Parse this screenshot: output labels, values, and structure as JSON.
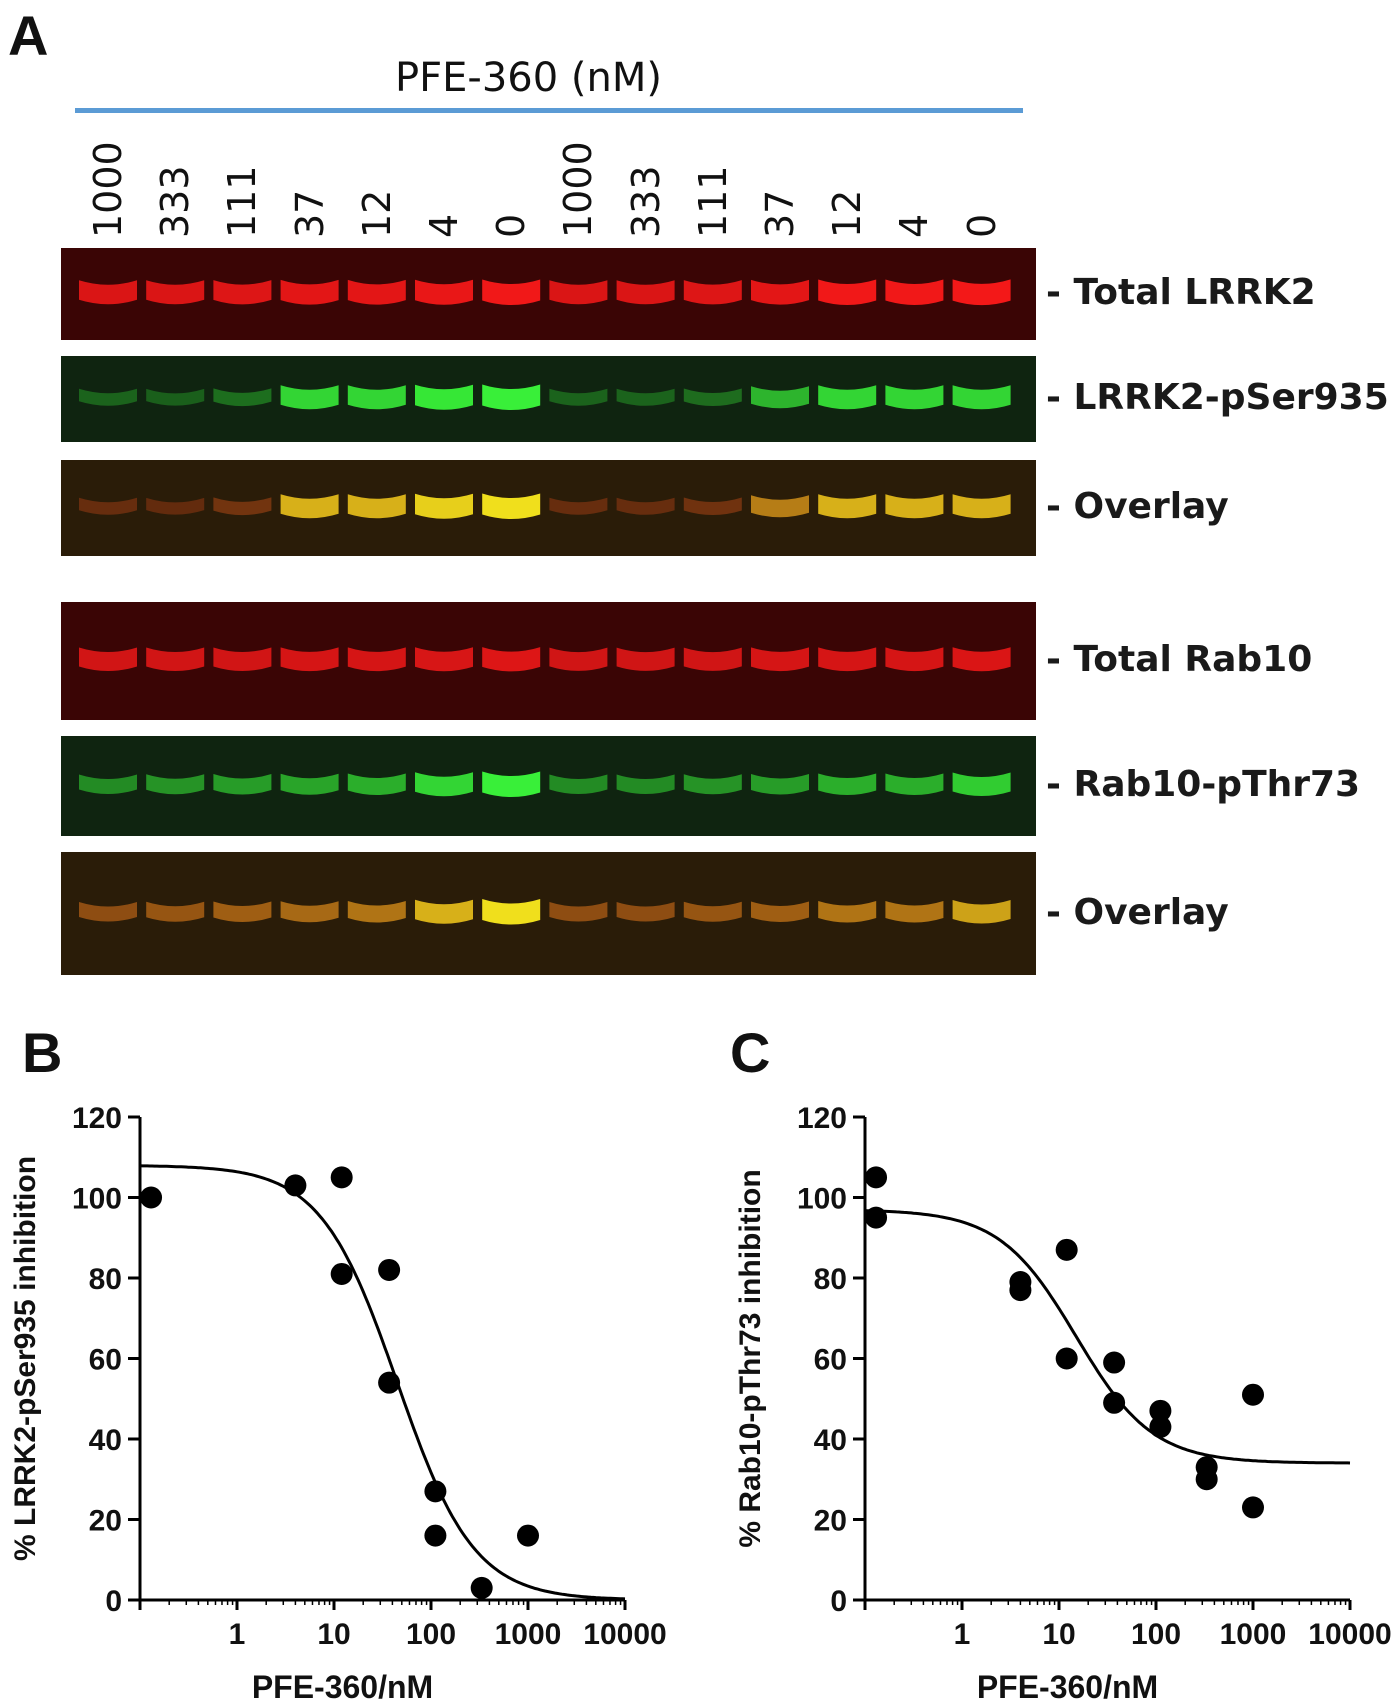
{
  "panel_a": {
    "letter": "A",
    "drug_title": "PFE-360 (nM)",
    "lanes": [
      "1000",
      "333",
      "111",
      "37",
      "12",
      "4",
      "0",
      "1000",
      "333",
      "111",
      "37",
      "12",
      "4",
      "0"
    ],
    "blots": [
      {
        "label": "- Total LRRK2",
        "channel": "red",
        "intensity": [
          0.75,
          0.75,
          0.78,
          0.82,
          0.82,
          0.85,
          0.9,
          0.75,
          0.75,
          0.78,
          0.82,
          0.9,
          0.9,
          0.92
        ]
      },
      {
        "label": "- LRRK2-pSer935",
        "channel": "green",
        "intensity": [
          0.05,
          0.03,
          0.12,
          0.75,
          0.75,
          0.85,
          0.9,
          0.05,
          0.06,
          0.1,
          0.55,
          0.75,
          0.75,
          0.75
        ]
      },
      {
        "label": "- Overlay",
        "channel": "overlay",
        "intensity": [
          0.05,
          0.03,
          0.12,
          0.75,
          0.75,
          0.85,
          0.9,
          0.05,
          0.06,
          0.1,
          0.55,
          0.75,
          0.75,
          0.75
        ]
      },
      {
        "label": "- Total Rab10",
        "channel": "red",
        "intensity": [
          0.7,
          0.7,
          0.7,
          0.72,
          0.72,
          0.74,
          0.78,
          0.68,
          0.68,
          0.68,
          0.72,
          0.72,
          0.72,
          0.75
        ]
      },
      {
        "label": "- Rab10-pThr73",
        "channel": "green",
        "intensity": [
          0.3,
          0.35,
          0.4,
          0.45,
          0.5,
          0.75,
          0.9,
          0.3,
          0.3,
          0.35,
          0.4,
          0.5,
          0.5,
          0.7
        ]
      },
      {
        "label": "- Overlay",
        "channel": "overlay",
        "intensity": [
          0.3,
          0.35,
          0.4,
          0.45,
          0.5,
          0.75,
          0.9,
          0.3,
          0.3,
          0.35,
          0.4,
          0.5,
          0.5,
          0.7
        ]
      }
    ],
    "colors": {
      "red": "#ff1a1a",
      "green": "#3cff3c",
      "overlay": "#ffe51a"
    }
  },
  "chart_data": [
    {
      "panel": "B",
      "type": "scatter",
      "xlabel": "PFE-360/nM",
      "ylabel": "% LRRK2-pSer935 inhibition",
      "x_scale": "log",
      "xlim": [
        0.1,
        10000
      ],
      "ylim": [
        0,
        120
      ],
      "yticks": [
        "0",
        "20",
        "40",
        "60",
        "80",
        "100",
        "120"
      ],
      "xticks": [
        "1",
        "10",
        "100",
        "1000",
        "10000"
      ],
      "points": [
        {
          "x": 0.13,
          "y": 100
        },
        {
          "x": 4,
          "y": 103
        },
        {
          "x": 12,
          "y": 105
        },
        {
          "x": 12,
          "y": 81
        },
        {
          "x": 37,
          "y": 82
        },
        {
          "x": 37,
          "y": 54
        },
        {
          "x": 111,
          "y": 27
        },
        {
          "x": 111,
          "y": 16
        },
        {
          "x": 333,
          "y": 3
        },
        {
          "x": 1000,
          "y": 16
        }
      ],
      "fit": {
        "top": 108,
        "bottom": 0,
        "ic50": 45,
        "hill": 1.1
      }
    },
    {
      "panel": "C",
      "type": "scatter",
      "xlabel": "PFE-360/nM",
      "ylabel": "% Rab10-pThr73 inhibition",
      "x_scale": "log",
      "xlim": [
        0.1,
        10000
      ],
      "ylim": [
        0,
        120
      ],
      "yticks": [
        "0",
        "20",
        "40",
        "60",
        "80",
        "100",
        "120"
      ],
      "xticks": [
        "1",
        "10",
        "100",
        "1000",
        "10000"
      ],
      "points": [
        {
          "x": 0.13,
          "y": 105
        },
        {
          "x": 0.13,
          "y": 95
        },
        {
          "x": 4,
          "y": 79
        },
        {
          "x": 4,
          "y": 77
        },
        {
          "x": 12,
          "y": 87
        },
        {
          "x": 12,
          "y": 60
        },
        {
          "x": 37,
          "y": 59
        },
        {
          "x": 37,
          "y": 49
        },
        {
          "x": 111,
          "y": 47
        },
        {
          "x": 111,
          "y": 43
        },
        {
          "x": 333,
          "y": 33
        },
        {
          "x": 333,
          "y": 30
        },
        {
          "x": 1000,
          "y": 51
        },
        {
          "x": 1000,
          "y": 23
        }
      ],
      "fit": {
        "top": 97,
        "bottom": 34,
        "ic50": 15,
        "hill": 1.1
      }
    }
  ]
}
